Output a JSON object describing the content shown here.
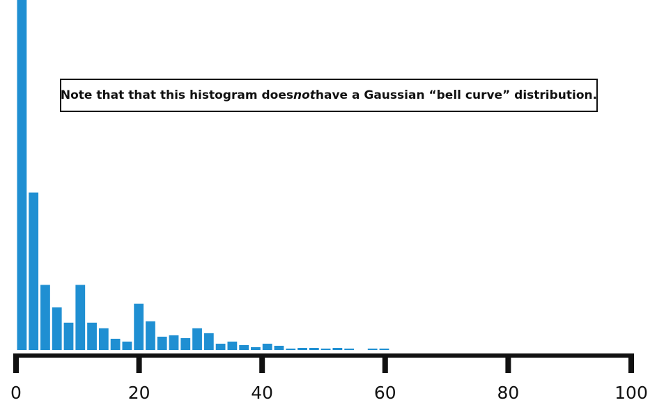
{
  "chart_data": {
    "type": "bar",
    "xlim": [
      0,
      100
    ],
    "x_ticks": [
      "0",
      "20",
      "40",
      "60",
      "80",
      "100"
    ],
    "bin_width": 1.9,
    "bins": [
      {
        "x": 0.95,
        "value": 100
      },
      {
        "x": 2.85,
        "value": 45
      },
      {
        "x": 4.75,
        "value": 18.6
      },
      {
        "x": 6.65,
        "value": 12.2
      },
      {
        "x": 8.55,
        "value": 7.8
      },
      {
        "x": 10.45,
        "value": 18.6
      },
      {
        "x": 12.35,
        "value": 7.8
      },
      {
        "x": 14.25,
        "value": 6.2
      },
      {
        "x": 16.15,
        "value": 3.2
      },
      {
        "x": 18.05,
        "value": 2.4
      },
      {
        "x": 19.95,
        "value": 13.2
      },
      {
        "x": 21.85,
        "value": 8.2
      },
      {
        "x": 23.75,
        "value": 3.8
      },
      {
        "x": 25.65,
        "value": 4.2
      },
      {
        "x": 27.55,
        "value": 3.4
      },
      {
        "x": 29.45,
        "value": 6.2
      },
      {
        "x": 31.35,
        "value": 4.8
      },
      {
        "x": 33.25,
        "value": 1.8
      },
      {
        "x": 35.15,
        "value": 2.4
      },
      {
        "x": 37.05,
        "value": 1.4
      },
      {
        "x": 38.95,
        "value": 0.8
      },
      {
        "x": 40.85,
        "value": 1.8
      },
      {
        "x": 42.75,
        "value": 1.2
      },
      {
        "x": 44.65,
        "value": 0.4
      },
      {
        "x": 46.55,
        "value": 0.6
      },
      {
        "x": 48.45,
        "value": 0.6
      },
      {
        "x": 50.35,
        "value": 0.4
      },
      {
        "x": 52.25,
        "value": 0.6
      },
      {
        "x": 54.15,
        "value": 0.4
      },
      {
        "x": 56.05,
        "value": 0
      },
      {
        "x": 57.95,
        "value": 0.4
      },
      {
        "x": 59.85,
        "value": 0.4
      }
    ],
    "bar_color": "#1f8fd2",
    "axis_color": "#111111",
    "grid": false
  },
  "annotation": {
    "before": "Note that that this histogram does ",
    "emphasis": "not",
    "after": " have a Gaussian “bell curve” distribution."
  }
}
